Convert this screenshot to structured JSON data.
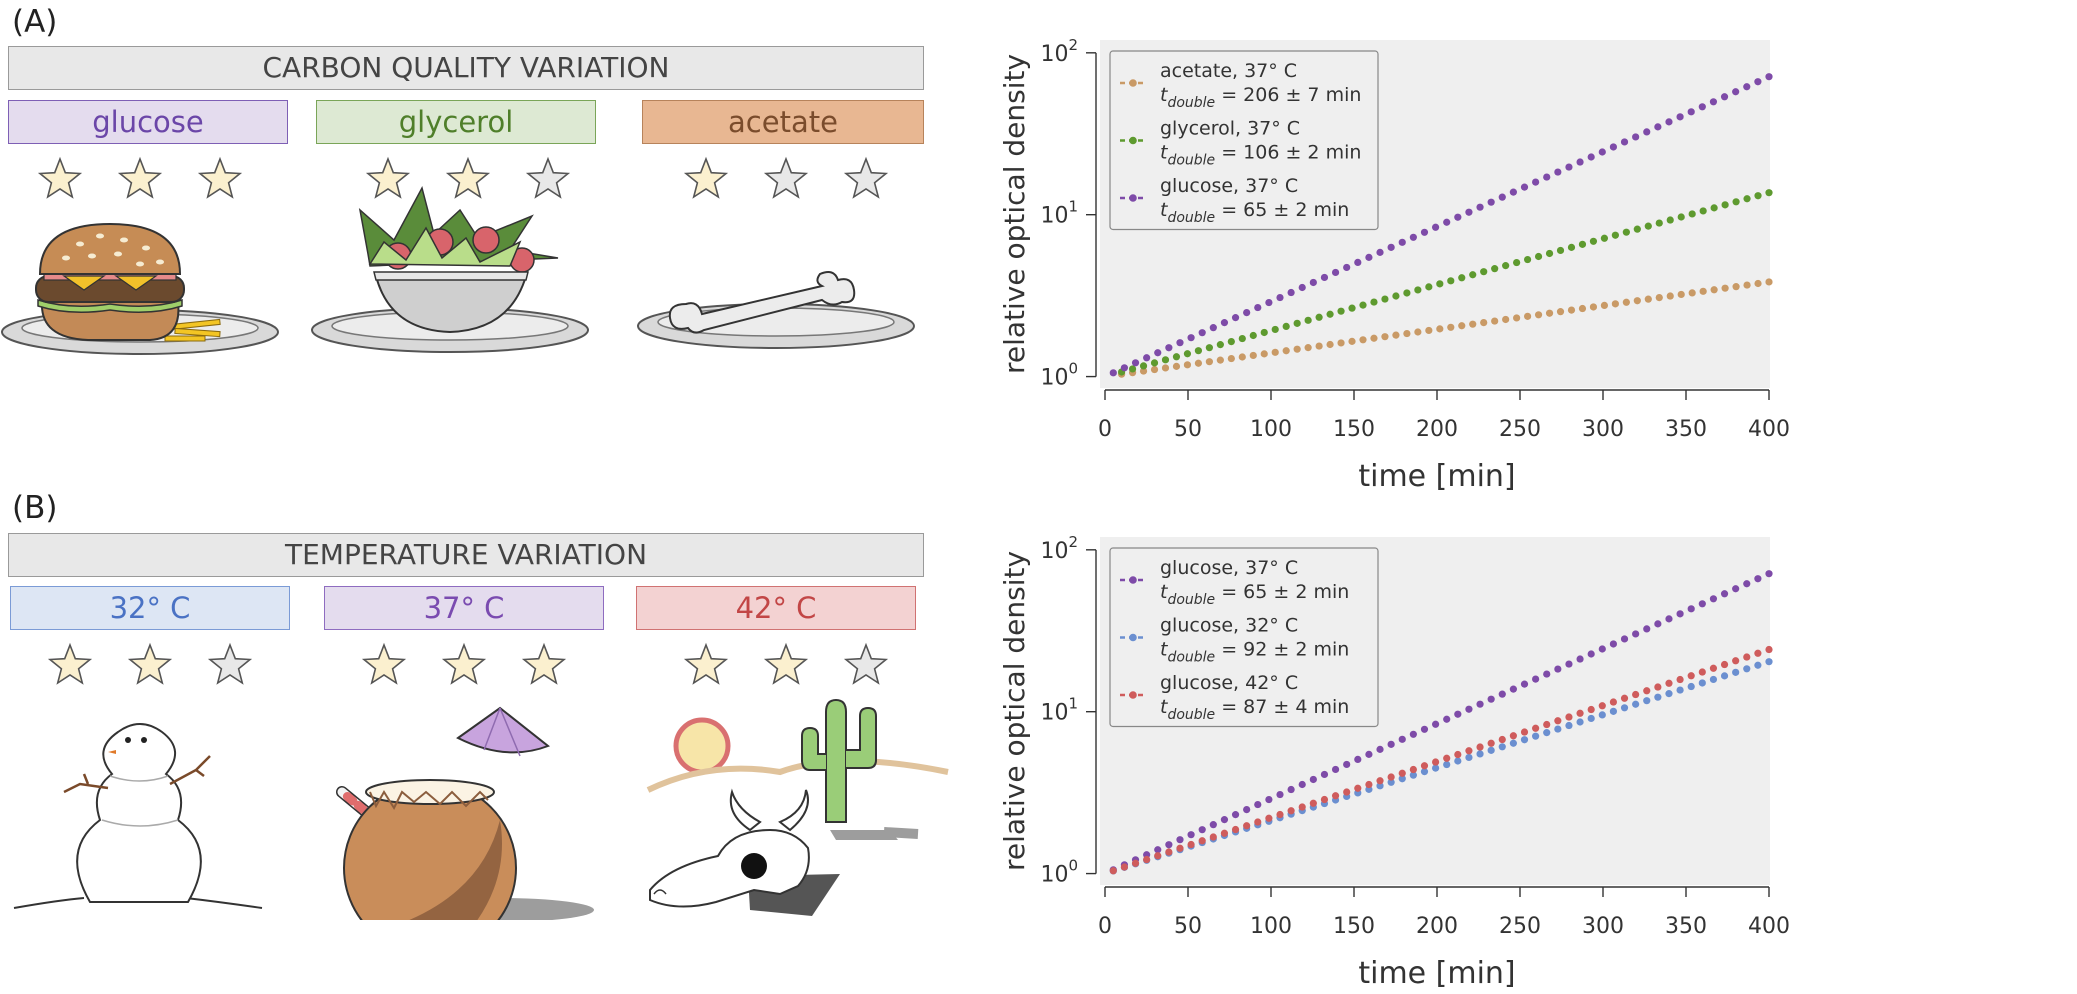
{
  "panel_a": {
    "label": "(A)",
    "banner": "CARBON QUALITY VARIATION",
    "conditions": [
      {
        "label": "glucose",
        "stars": 3,
        "text_color": "#6b46a8",
        "bg": "#e4dcee",
        "border": "#7e5fb5"
      },
      {
        "label": "glycerol",
        "stars": 2,
        "text_color": "#4f7f2a",
        "bg": "#dde9d3",
        "border": "#7aa558"
      },
      {
        "label": "acetate",
        "stars": 1,
        "text_color": "#7a4c2c",
        "bg": "#e8b792",
        "border": "#b7835b"
      }
    ]
  },
  "panel_b": {
    "label": "(B)",
    "banner": "TEMPERATURE VARIATION",
    "conditions": [
      {
        "label": "32° C",
        "stars": 2,
        "text_color": "#4a72c4",
        "bg": "#dde6f4",
        "border": "#7b9bd6"
      },
      {
        "label": "37° C",
        "stars": 3,
        "text_color": "#7a4bb0",
        "bg": "#e4dcee",
        "border": "#8e6cc0"
      },
      {
        "label": "42° C",
        "stars": 2,
        "text_color": "#c24646",
        "bg": "#f3d2d2",
        "border": "#d07272"
      }
    ]
  },
  "colors": {
    "star_filled": "#fbf0cf",
    "star_empty": "#e8e8e8",
    "star_stroke": "#555555",
    "plot_bg": "#efefef"
  },
  "chart_data": [
    {
      "type": "scatter",
      "xlabel": "time [min]",
      "ylabel": "relative optical density",
      "xlim": [
        0,
        400
      ],
      "ylim": [
        0.85,
        120
      ],
      "yscale": "log",
      "xticks": [
        0,
        50,
        100,
        150,
        200,
        250,
        300,
        350,
        400
      ],
      "yticks": [
        {
          "base": "10",
          "exp": "0",
          "value": 1
        },
        {
          "base": "10",
          "exp": "1",
          "value": 10
        },
        {
          "base": "10",
          "exp": "2",
          "value": 100
        }
      ],
      "legend_position": "top-left",
      "series": [
        {
          "name": "acetate, 37° C",
          "t_label": "t",
          "t_sub": "double",
          "t_value": " = 206 ± 7 min",
          "color": "#c99a66",
          "doubling_time": 206,
          "x_start": 10,
          "x_end": 400,
          "n": 60
        },
        {
          "name": "glycerol, 37° C",
          "t_label": "t",
          "t_sub": "double",
          "t_value": " = 106 ± 2 min",
          "color": "#5e9a2f",
          "doubling_time": 106,
          "x_start": 10,
          "x_end": 400,
          "n": 60
        },
        {
          "name": "glucose, 37° C",
          "t_label": "t",
          "t_sub": "double",
          "t_value": " = 65 ± 2 min",
          "color": "#7e4ba8",
          "doubling_time": 65,
          "x_start": 5,
          "x_end": 400,
          "n": 60
        }
      ]
    },
    {
      "type": "scatter",
      "xlabel": "time [min]",
      "ylabel": "relative optical density",
      "xlim": [
        0,
        400
      ],
      "ylim": [
        0.85,
        120
      ],
      "yscale": "log",
      "xticks": [
        0,
        50,
        100,
        150,
        200,
        250,
        300,
        350,
        400
      ],
      "yticks": [
        {
          "base": "10",
          "exp": "0",
          "value": 1
        },
        {
          "base": "10",
          "exp": "1",
          "value": 10
        },
        {
          "base": "10",
          "exp": "2",
          "value": 100
        }
      ],
      "legend_position": "top-left",
      "series": [
        {
          "name": "glucose, 37° C",
          "t_label": "t",
          "t_sub": "double",
          "t_value": " = 65 ± 2 min",
          "color": "#7e4ba8",
          "doubling_time": 65,
          "x_start": 5,
          "x_end": 400,
          "n": 60
        },
        {
          "name": "glucose, 32° C",
          "t_label": "t",
          "t_sub": "double",
          "t_value": " = 92 ± 2 min",
          "color": "#6b8fd0",
          "doubling_time": 92,
          "x_start": 5,
          "x_end": 400,
          "n": 60
        },
        {
          "name": "glucose, 42° C",
          "t_label": "t",
          "t_sub": "double",
          "t_value": " = 87 ± 4 min",
          "color": "#cf5c5c",
          "doubling_time": 87,
          "x_start": 5,
          "x_end": 400,
          "n": 60
        }
      ]
    }
  ]
}
